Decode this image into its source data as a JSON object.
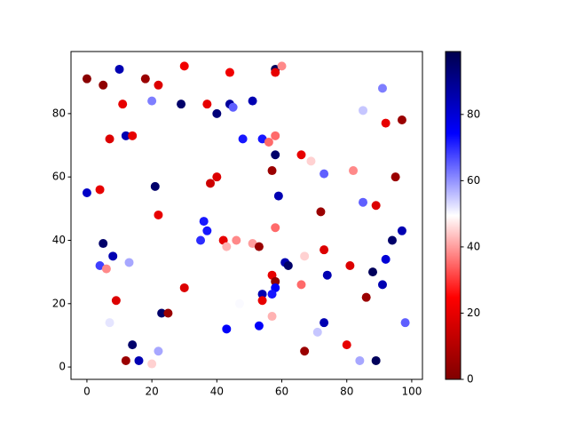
{
  "chart_data": {
    "type": "scatter",
    "x": [
      0,
      10,
      5,
      18,
      22,
      30,
      44,
      58,
      60,
      58,
      11,
      20,
      29,
      37,
      44,
      45,
      40,
      51,
      91,
      85,
      97,
      92,
      7,
      12,
      14,
      48,
      54,
      56,
      58,
      58,
      66,
      69,
      57,
      73,
      82,
      0,
      4,
      21,
      40,
      38,
      59,
      95,
      85,
      89,
      72,
      22,
      36,
      37,
      35,
      58,
      97,
      5,
      42,
      43,
      46,
      51,
      53,
      73,
      94,
      8,
      4,
      6,
      13,
      61,
      62,
      67,
      57,
      58,
      58,
      66,
      81,
      74,
      92,
      88,
      30,
      91,
      86,
      9,
      54,
      57,
      54,
      47,
      23,
      25,
      57,
      7,
      53,
      43,
      73,
      71,
      98,
      14,
      22,
      67,
      80,
      12,
      16,
      20,
      84,
      89
    ],
    "values": [
      91,
      94,
      89,
      91,
      89,
      95,
      93,
      94,
      95,
      93,
      83,
      84,
      83,
      83,
      83,
      82,
      80,
      84,
      88,
      81,
      78,
      77,
      72,
      73,
      73,
      72,
      72,
      71,
      73,
      67,
      67,
      65,
      62,
      61,
      62,
      55,
      56,
      57,
      60,
      58,
      54,
      60,
      52,
      51,
      49,
      48,
      46,
      43,
      40,
      44,
      43,
      39,
      40,
      38,
      40,
      39,
      38,
      37,
      40,
      35,
      32,
      31,
      33,
      33,
      32,
      35,
      29,
      27,
      25,
      26,
      32,
      29,
      34,
      30,
      25,
      26,
      22,
      21,
      23,
      23,
      21,
      20,
      17,
      17,
      16,
      14,
      13,
      12,
      14,
      11,
      14,
      7,
      5,
      5,
      7,
      2,
      2,
      1,
      2,
      2
    ],
    "color_values": [
      2,
      85,
      3,
      5,
      18,
      22,
      22,
      97,
      38,
      20,
      20,
      62,
      95,
      20,
      88,
      65,
      93,
      85,
      62,
      55,
      5,
      20,
      18,
      85,
      20,
      72,
      72,
      35,
      35,
      95,
      20,
      45,
      5,
      65,
      38,
      82,
      20,
      95,
      18,
      15,
      85,
      5,
      65,
      18,
      5,
      20,
      72,
      72,
      70,
      35,
      85,
      95,
      20,
      42,
      38,
      40,
      5,
      18,
      95,
      85,
      68,
      38,
      58,
      85,
      95,
      45,
      20,
      3,
      75,
      35,
      18,
      85,
      80,
      97,
      18,
      85,
      5,
      18,
      85,
      72,
      20,
      50,
      95,
      5,
      42,
      52,
      75,
      75,
      85,
      55,
      65,
      95,
      58,
      5,
      20,
      5,
      85,
      45,
      58,
      97
    ],
    "colormap": [
      "#800000",
      "#ff0000",
      "#ffffff",
      "#0000ff",
      "#00004d"
    ],
    "clim": [
      0,
      99
    ],
    "cticks": [
      0,
      20,
      40,
      60,
      80
    ],
    "xlim": [
      -4.9,
      103.3
    ],
    "xticks": [
      0,
      20,
      40,
      60,
      80,
      100
    ],
    "ylim": [
      -3.9,
      99.6
    ],
    "yticks": [
      0,
      20,
      40,
      60,
      80
    ]
  }
}
